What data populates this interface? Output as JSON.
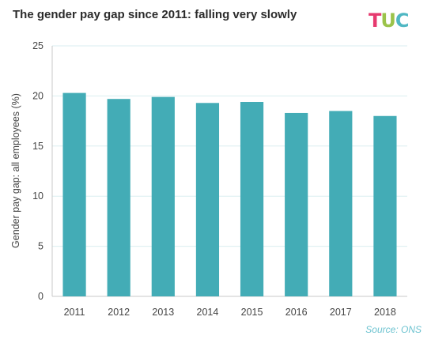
{
  "chart_data": {
    "type": "bar",
    "title": "The gender pay gap since 2011: falling very slowly",
    "ylabel": "Gender pay gap: all employees (%)",
    "xlabel": "",
    "categories": [
      "2011",
      "2012",
      "2013",
      "2014",
      "2015",
      "2016",
      "2017",
      "2018"
    ],
    "values": [
      20.3,
      19.7,
      19.9,
      19.3,
      19.4,
      18.3,
      18.5,
      18.0
    ],
    "ylim": [
      0,
      25
    ],
    "yticks": [
      "0",
      "5",
      "10",
      "15",
      "20",
      "25"
    ],
    "grid": true,
    "bar_color": "#43acb6",
    "source": "Source: ONS"
  },
  "logo": {
    "letters": [
      "T",
      "U",
      "C"
    ],
    "colors": [
      "#e63a6f",
      "#9bc34a",
      "#4fb7c3"
    ]
  }
}
